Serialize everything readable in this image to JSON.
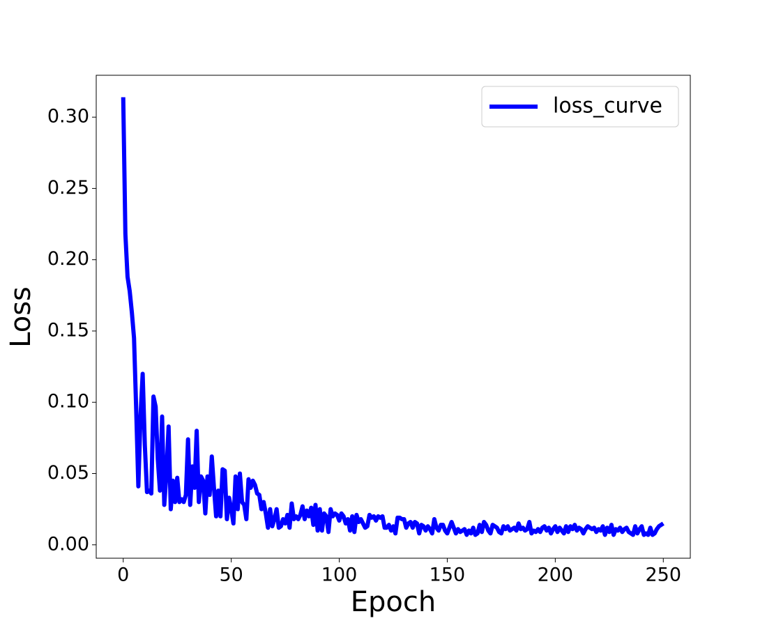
{
  "chart_data": {
    "type": "line",
    "x_label": "Epoch",
    "y_label": "Loss",
    "x": [
      0,
      1,
      2,
      3,
      4,
      5,
      6,
      7,
      8,
      9,
      10,
      11,
      12,
      13,
      14,
      15,
      16,
      17,
      18,
      19,
      20,
      21,
      22,
      23,
      24,
      25,
      26,
      27,
      28,
      29,
      30,
      31,
      32,
      33,
      34,
      35,
      36,
      37,
      38,
      39,
      40,
      41,
      42,
      43,
      44,
      45,
      46,
      47,
      48,
      49,
      50,
      51,
      52,
      53,
      54,
      55,
      56,
      57,
      58,
      59,
      60,
      61,
      62,
      63,
      64,
      65,
      66,
      67,
      68,
      69,
      70,
      71,
      72,
      73,
      74,
      75,
      76,
      77,
      78,
      79,
      80,
      81,
      82,
      83,
      84,
      85,
      86,
      87,
      88,
      89,
      90,
      91,
      92,
      93,
      94,
      95,
      96,
      97,
      98,
      99,
      100,
      101,
      102,
      103,
      104,
      105,
      106,
      107,
      108,
      109,
      110,
      111,
      112,
      113,
      114,
      115,
      116,
      117,
      118,
      119,
      120,
      121,
      122,
      123,
      124,
      125,
      126,
      127,
      128,
      129,
      130,
      131,
      132,
      133,
      134,
      135,
      136,
      137,
      138,
      139,
      140,
      141,
      142,
      143,
      144,
      145,
      146,
      147,
      148,
      149,
      150,
      151,
      152,
      153,
      154,
      155,
      156,
      157,
      158,
      159,
      160,
      161,
      162,
      163,
      164,
      165,
      166,
      167,
      168,
      169,
      170,
      171,
      172,
      173,
      174,
      175,
      176,
      177,
      178,
      179,
      180,
      181,
      182,
      183,
      184,
      185,
      186,
      187,
      188,
      189,
      190,
      191,
      192,
      193,
      194,
      195,
      196,
      197,
      198,
      199,
      200,
      201,
      202,
      203,
      204,
      205,
      206,
      207,
      208,
      209,
      210,
      211,
      212,
      213,
      214,
      215,
      216,
      217,
      218,
      219,
      220,
      221,
      222,
      223,
      224,
      225,
      226,
      227,
      228,
      229,
      230,
      231,
      232,
      233,
      234,
      235,
      236,
      237,
      238,
      239,
      240,
      241,
      242,
      243,
      244,
      245,
      246,
      247,
      248,
      249,
      250
    ],
    "series": [
      {
        "name": "loss_curve",
        "color": "#0000ff",
        "values": [
          0.314,
          0.218,
          0.188,
          0.178,
          0.163,
          0.145,
          0.095,
          0.041,
          0.09,
          0.12,
          0.07,
          0.037,
          0.038,
          0.036,
          0.104,
          0.097,
          0.06,
          0.038,
          0.09,
          0.028,
          0.05,
          0.083,
          0.025,
          0.045,
          0.03,
          0.047,
          0.03,
          0.032,
          0.03,
          0.035,
          0.074,
          0.028,
          0.055,
          0.04,
          0.08,
          0.03,
          0.048,
          0.045,
          0.022,
          0.048,
          0.035,
          0.062,
          0.04,
          0.02,
          0.038,
          0.02,
          0.053,
          0.052,
          0.018,
          0.033,
          0.025,
          0.015,
          0.048,
          0.025,
          0.05,
          0.03,
          0.028,
          0.018,
          0.046,
          0.04,
          0.045,
          0.042,
          0.036,
          0.035,
          0.025,
          0.03,
          0.022,
          0.012,
          0.025,
          0.013,
          0.018,
          0.025,
          0.012,
          0.013,
          0.018,
          0.015,
          0.021,
          0.012,
          0.029,
          0.018,
          0.02,
          0.018,
          0.021,
          0.027,
          0.018,
          0.024,
          0.02,
          0.026,
          0.014,
          0.028,
          0.01,
          0.025,
          0.01,
          0.022,
          0.02,
          0.009,
          0.025,
          0.02,
          0.022,
          0.021,
          0.017,
          0.022,
          0.02,
          0.015,
          0.018,
          0.01,
          0.02,
          0.009,
          0.021,
          0.016,
          0.018,
          0.015,
          0.012,
          0.013,
          0.021,
          0.019,
          0.02,
          0.017,
          0.02,
          0.019,
          0.02,
          0.012,
          0.012,
          0.014,
          0.01,
          0.013,
          0.008,
          0.019,
          0.019,
          0.018,
          0.018,
          0.012,
          0.015,
          0.016,
          0.012,
          0.016,
          0.015,
          0.008,
          0.014,
          0.013,
          0.01,
          0.013,
          0.011,
          0.008,
          0.018,
          0.012,
          0.01,
          0.014,
          0.014,
          0.01,
          0.008,
          0.012,
          0.016,
          0.012,
          0.008,
          0.011,
          0.009,
          0.01,
          0.011,
          0.007,
          0.01,
          0.008,
          0.012,
          0.007,
          0.008,
          0.014,
          0.009,
          0.016,
          0.014,
          0.01,
          0.008,
          0.014,
          0.013,
          0.012,
          0.009,
          0.008,
          0.013,
          0.011,
          0.013,
          0.01,
          0.011,
          0.012,
          0.01,
          0.015,
          0.011,
          0.012,
          0.01,
          0.011,
          0.016,
          0.008,
          0.01,
          0.009,
          0.011,
          0.009,
          0.012,
          0.013,
          0.01,
          0.012,
          0.008,
          0.011,
          0.013,
          0.009,
          0.012,
          0.01,
          0.008,
          0.013,
          0.009,
          0.013,
          0.011,
          0.014,
          0.01,
          0.012,
          0.011,
          0.008,
          0.011,
          0.013,
          0.012,
          0.011,
          0.012,
          0.009,
          0.011,
          0.01,
          0.013,
          0.007,
          0.012,
          0.009,
          0.014,
          0.007,
          0.011,
          0.01,
          0.012,
          0.009,
          0.011,
          0.012,
          0.009,
          0.008,
          0.007,
          0.013,
          0.008,
          0.011,
          0.013,
          0.007,
          0.008,
          0.007,
          0.012,
          0.007,
          0.008,
          0.011,
          0.013,
          0.014,
          0.015
        ]
      }
    ],
    "xlim": [
      -12.5,
      262.5
    ],
    "ylim": [
      -0.0094,
      0.3294
    ],
    "xticks": [
      0,
      50,
      100,
      150,
      200,
      250
    ],
    "yticks": [
      {
        "value": 0,
        "label": "0.00"
      },
      0.05,
      {
        "value": 0.1,
        "label": "0.10"
      },
      0.15,
      {
        "value": 0.2,
        "label": "0.20"
      },
      0.25,
      {
        "value": 0.3,
        "label": "0.30"
      }
    ],
    "legend": "upper right",
    "grid": false
  }
}
